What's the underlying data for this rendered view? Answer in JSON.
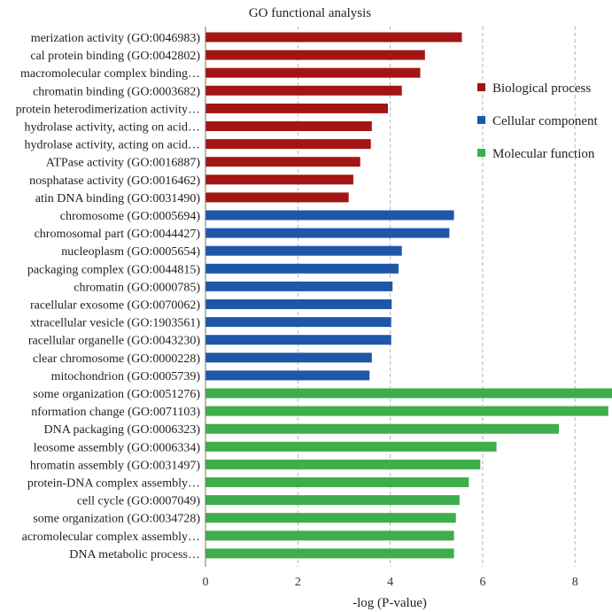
{
  "chart_data": {
    "type": "bar",
    "orientation": "horizontal",
    "title": "GO functional analysis",
    "xlabel": "-log (P-value)",
    "ylabel": "",
    "xlim": [
      0,
      8.8
    ],
    "xticks": [
      0,
      2,
      4,
      6,
      8
    ],
    "grid": "vertical dashed",
    "legend_position": "right",
    "colors": {
      "Biological process": "#a31515",
      "Cellular component": "#1f57a8",
      "Molecular function": "#3cae4b"
    },
    "legend": [
      "Biological process",
      "Cellular component",
      "Molecular function"
    ],
    "categories": [
      "merization activity (GO:0046983)",
      "cal protein binding (GO:0042802)",
      "macromolecular complex binding…",
      "chromatin binding (GO:0003682)",
      "protein heterodimerization activity…",
      " hydrolase activity, acting on acid…",
      " hydrolase activity, acting on acid…",
      "ATPase activity (GO:0016887)",
      "nosphatase activity (GO:0016462)",
      "atin DNA binding (GO:0031490)",
      "chromosome (GO:0005694)",
      "chromosomal part (GO:0044427)",
      "nucleoplasm (GO:0005654)",
      "packaging complex (GO:0044815)",
      "chromatin (GO:0000785)",
      "racellular exosome (GO:0070062)",
      "xtracellular vesicle (GO:1903561)",
      "racellular organelle (GO:0043230)",
      "clear chromosome (GO:0000228)",
      "mitochondrion (GO:0005739)",
      "some organization (GO:0051276)",
      "nformation change (GO:0071103)",
      "DNA packaging (GO:0006323)",
      "leosome assembly (GO:0006334)",
      "hromatin assembly (GO:0031497)",
      "protein-DNA complex assembly…",
      "cell cycle (GO:0007049)",
      "some organization (GO:0034728)",
      "acromolecular complex assembly…",
      "DNA metabolic process…"
    ],
    "groups": [
      "Biological process",
      "Biological process",
      "Biological process",
      "Biological process",
      "Biological process",
      "Biological process",
      "Biological process",
      "Biological process",
      "Biological process",
      "Biological process",
      "Cellular component",
      "Cellular component",
      "Cellular component",
      "Cellular component",
      "Cellular component",
      "Cellular component",
      "Cellular component",
      "Cellular component",
      "Cellular component",
      "Cellular component",
      "Molecular function",
      "Molecular function",
      "Molecular function",
      "Molecular function",
      "Molecular function",
      "Molecular function",
      "Molecular function",
      "Molecular function",
      "Molecular function",
      "Molecular function"
    ],
    "values": [
      5.55,
      4.75,
      4.65,
      4.25,
      3.95,
      3.6,
      3.58,
      3.35,
      3.2,
      3.1,
      5.38,
      5.28,
      4.25,
      4.18,
      4.05,
      4.03,
      4.02,
      4.02,
      3.6,
      3.55,
      8.8,
      8.72,
      7.65,
      6.3,
      5.95,
      5.7,
      5.5,
      5.42,
      5.38,
      5.38
    ]
  }
}
